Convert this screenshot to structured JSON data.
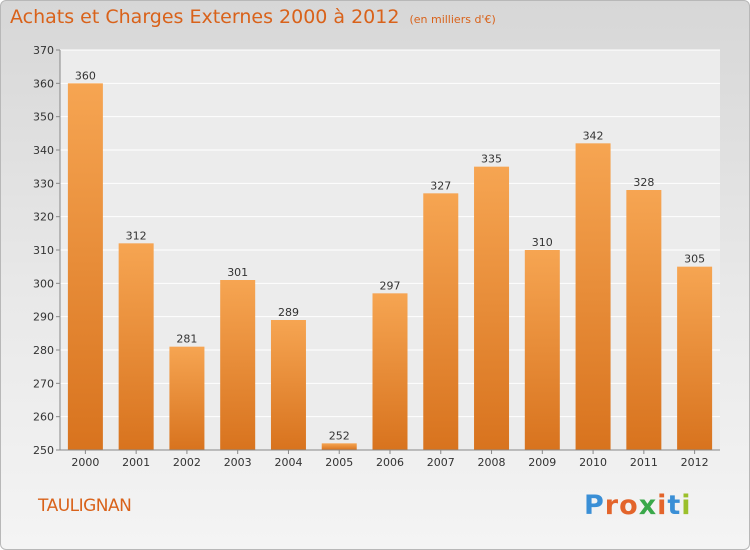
{
  "header": {
    "title": "Achats et Charges Externes 2000 à 2012",
    "unit": "(en milliers d'€)"
  },
  "footer": {
    "city": "TAULIGNAN",
    "logo_letters": [
      "P",
      "r",
      "o",
      "x",
      "i",
      "t",
      "i"
    ],
    "logo_colors": [
      "#3a8fd6",
      "#e3642b",
      "#e3642b",
      "#3aa84a",
      "#e3642b",
      "#3a8fd6",
      "#9bc02b"
    ]
  },
  "colors": {
    "bar_light": "#f6a552",
    "bar_dark": "#d8731e",
    "accent": "#d9621a"
  },
  "chart_data": {
    "type": "bar",
    "categories": [
      "2000",
      "2001",
      "2002",
      "2003",
      "2004",
      "2005",
      "2006",
      "2007",
      "2008",
      "2009",
      "2010",
      "2011",
      "2012"
    ],
    "values": [
      360,
      312,
      281,
      301,
      289,
      252,
      297,
      327,
      335,
      310,
      342,
      328,
      305
    ],
    "ylim": [
      250,
      370
    ],
    "yticks": [
      250,
      260,
      270,
      280,
      290,
      300,
      310,
      320,
      330,
      340,
      350,
      360,
      370
    ],
    "grid": true,
    "xlabel": "",
    "ylabel": ""
  }
}
